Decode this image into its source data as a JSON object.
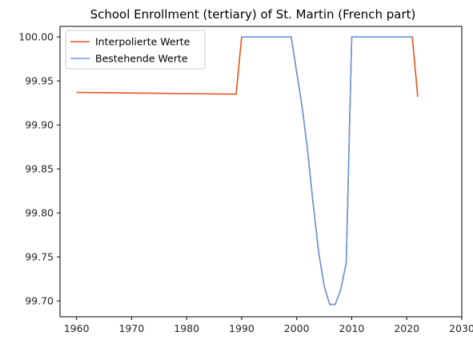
{
  "chart_data": {
    "type": "line",
    "title": "School Enrollment (tertiary) of St. Martin (French part)",
    "xlabel": "",
    "ylabel": "",
    "xlim": [
      1957,
      2030
    ],
    "ylim": [
      99.682,
      100.012
    ],
    "xticks": [
      1960,
      1970,
      1980,
      1990,
      2000,
      2010,
      2020,
      2030
    ],
    "yticks": [
      99.7,
      99.75,
      99.8,
      99.85,
      99.9,
      99.95,
      100.0
    ],
    "ytick_labels": [
      "99.70",
      "99.75",
      "99.80",
      "99.85",
      "99.90",
      "99.95",
      "100.00"
    ],
    "grid": false,
    "legend_position": "upper-left",
    "series": [
      {
        "name": "Interpolierte Werte",
        "color": "#e8521c",
        "x": [
          1960,
          1989,
          1990,
          1999,
          2000,
          2001,
          2002,
          2003,
          2004,
          2005,
          2006,
          2007,
          2008,
          2009,
          2010,
          2021,
          2022
        ],
        "y": [
          99.937,
          99.935,
          100.0,
          100.0,
          99.96,
          99.92,
          99.87,
          99.81,
          99.755,
          99.717,
          99.696,
          99.696,
          99.713,
          99.743,
          100.0,
          100.0,
          99.932
        ]
      },
      {
        "name": "Bestehende Werte",
        "color": "#6a9be0",
        "x": [
          1990,
          1999,
          2000,
          2001,
          2002,
          2003,
          2004,
          2005,
          2006,
          2007,
          2008,
          2009,
          2010,
          2021
        ],
        "y": [
          100.0,
          100.0,
          99.96,
          99.92,
          99.87,
          99.81,
          99.755,
          99.717,
          99.696,
          99.696,
          99.713,
          99.743,
          100.0,
          100.0
        ]
      }
    ]
  }
}
